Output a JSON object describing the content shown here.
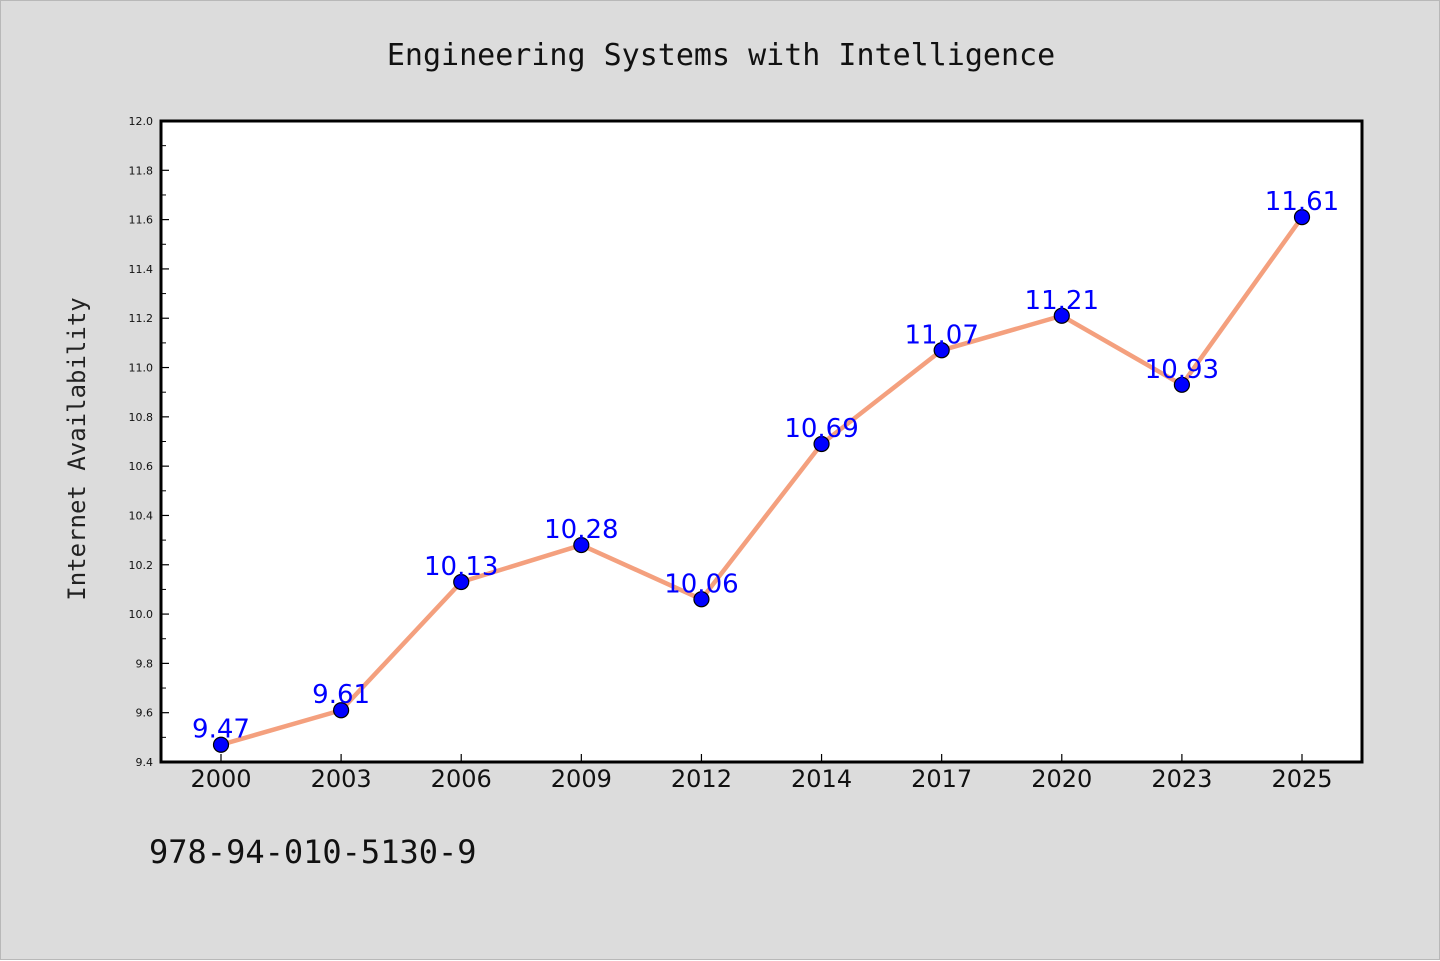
{
  "chart_data": {
    "type": "line",
    "title": "Engineering Systems with Intelligence",
    "xlabel": "",
    "ylabel": "Internet Availability",
    "categories": [
      "2000",
      "2003",
      "2006",
      "2009",
      "2012",
      "2014",
      "2017",
      "2020",
      "2023",
      "2025"
    ],
    "series": [
      {
        "values": [
          9.47,
          9.61,
          10.13,
          10.28,
          10.06,
          10.69,
          11.07,
          11.21,
          10.93,
          11.61
        ]
      }
    ],
    "data_labels": [
      "9.47",
      "9.61",
      "10.13",
      "10.28",
      "10.06",
      "10.69",
      "11.07",
      "11.21",
      "10.93",
      "11.61"
    ],
    "ylim": [
      9.4,
      12.0
    ],
    "yticks": [
      "9.4",
      "9.6",
      "9.8",
      "10.0",
      "10.2",
      "10.4",
      "10.6",
      "10.8",
      "11.0",
      "11.2",
      "11.4",
      "11.6",
      "11.8",
      "12.0"
    ],
    "grid": false,
    "legend": "none",
    "colors": {
      "line": "#f4a07e",
      "marker_fill": "#0000ff",
      "marker_edge": "#000000",
      "data_label": "#0000ff",
      "figure_background": "#dcdcdc",
      "plot_background": "#ffffff"
    }
  },
  "footer": {
    "isbn": "978-94-010-5130-9"
  }
}
